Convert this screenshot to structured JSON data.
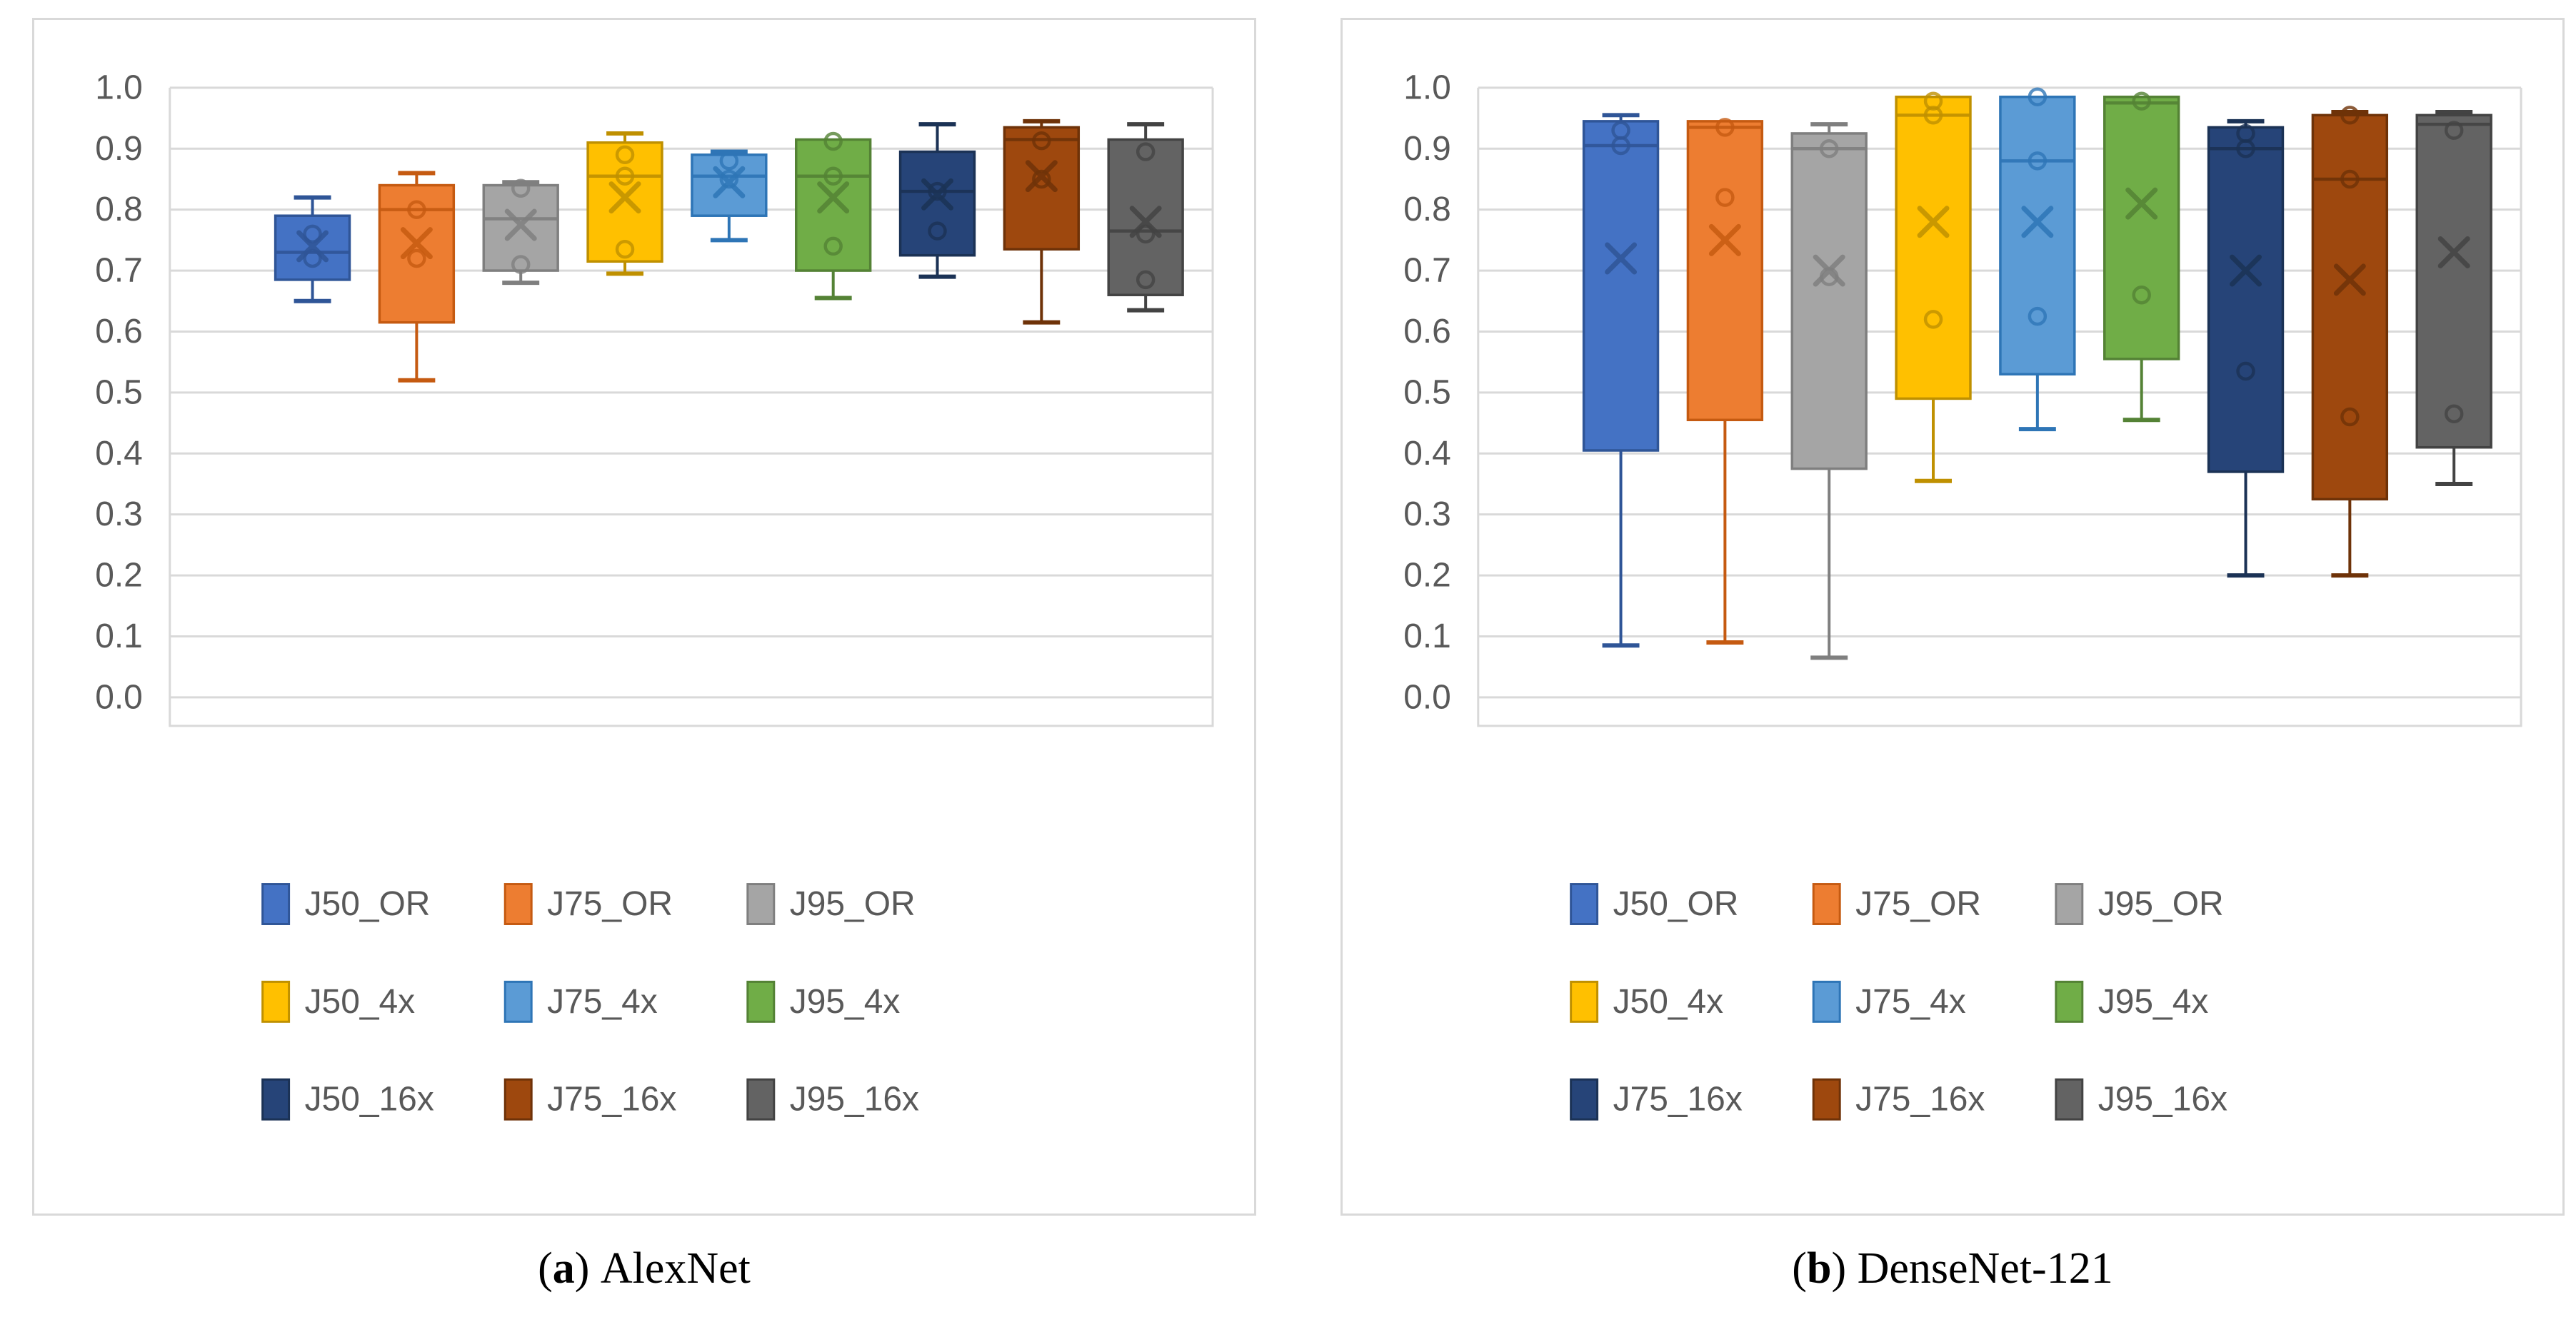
{
  "page": {
    "background": "#ffffff",
    "frame_color": "#d9d9d9",
    "gridline_color": "#d9d9d9",
    "axis_text_color": "#595959",
    "legend_text_color": "#595959"
  },
  "captions": [
    {
      "open": "(",
      "letter": "a",
      "close": ")",
      "title": "AlexNet"
    },
    {
      "open": "(",
      "letter": "b",
      "close": ")",
      "title": "DenseNet-121"
    }
  ],
  "chart_data": [
    {
      "type": "box",
      "title": "(a) AlexNet",
      "xlabel": "",
      "ylabel": "",
      "ylim": [
        0.0,
        1.0
      ],
      "ytick_step": 0.1,
      "grid": true,
      "tick_labels": [
        "0.0",
        "0.1",
        "0.2",
        "0.3",
        "0.4",
        "0.5",
        "0.6",
        "0.7",
        "0.8",
        "0.9",
        "1.0"
      ],
      "legend_position": "bottom",
      "legend_rows": [
        [
          "J50_OR",
          "J75_OR",
          "J95_OR"
        ],
        [
          "J50_4x",
          "J75_4x",
          "J95_4x"
        ],
        [
          "J50_16x",
          "J75_16x",
          "J95_16x"
        ]
      ],
      "series": [
        {
          "name": "J50_OR",
          "fill": "#4472C4",
          "line": "#2F5597",
          "min": 0.65,
          "q1": 0.685,
          "median": 0.73,
          "q3": 0.79,
          "max": 0.82,
          "mean": 0.74,
          "points": [
            0.76,
            0.72
          ]
        },
        {
          "name": "J75_OR",
          "fill": "#ED7D31",
          "line": "#C55A11",
          "min": 0.52,
          "q1": 0.615,
          "median": 0.8,
          "q3": 0.84,
          "max": 0.86,
          "mean": 0.745,
          "points": [
            0.8,
            0.72
          ]
        },
        {
          "name": "J95_OR",
          "fill": "#A5A5A5",
          "line": "#7F7F7F",
          "min": 0.68,
          "q1": 0.7,
          "median": 0.785,
          "q3": 0.84,
          "max": 0.845,
          "mean": 0.775,
          "points": [
            0.835,
            0.71
          ]
        },
        {
          "name": "J50_4x",
          "fill": "#FFC000",
          "line": "#BF9000",
          "min": 0.695,
          "q1": 0.715,
          "median": 0.855,
          "q3": 0.91,
          "max": 0.925,
          "mean": 0.82,
          "points": [
            0.89,
            0.855,
            0.735
          ]
        },
        {
          "name": "J75_4x",
          "fill": "#5B9BD5",
          "line": "#2E75B6",
          "min": 0.75,
          "q1": 0.79,
          "median": 0.855,
          "q3": 0.89,
          "max": 0.895,
          "mean": 0.845,
          "points": [
            0.88,
            0.85
          ]
        },
        {
          "name": "J95_4x",
          "fill": "#70AD47",
          "line": "#548235",
          "min": 0.655,
          "q1": 0.7,
          "median": 0.855,
          "q3": 0.915,
          "max": 0.915,
          "mean": 0.82,
          "points": [
            0.912,
            0.855,
            0.74
          ]
        },
        {
          "name": "J50_16x",
          "fill": "#264478",
          "line": "#1B3255",
          "min": 0.69,
          "q1": 0.725,
          "median": 0.83,
          "q3": 0.895,
          "max": 0.94,
          "mean": 0.825,
          "points": [
            0.83,
            0.765
          ]
        },
        {
          "name": "J75_16x",
          "fill": "#9E480E",
          "line": "#6E3208",
          "min": 0.615,
          "q1": 0.735,
          "median": 0.915,
          "q3": 0.935,
          "max": 0.945,
          "mean": 0.855,
          "points": [
            0.913,
            0.85
          ]
        },
        {
          "name": "J95_16x",
          "fill": "#636363",
          "line": "#434343",
          "min": 0.635,
          "q1": 0.66,
          "median": 0.765,
          "q3": 0.915,
          "max": 0.94,
          "mean": 0.78,
          "points": [
            0.895,
            0.76,
            0.685
          ]
        }
      ]
    },
    {
      "type": "box",
      "title": "(b) DenseNet-121",
      "xlabel": "",
      "ylabel": "",
      "ylim": [
        0.0,
        1.0
      ],
      "ytick_step": 0.1,
      "grid": true,
      "tick_labels": [
        "0.0",
        "0.1",
        "0.2",
        "0.3",
        "0.4",
        "0.5",
        "0.6",
        "0.7",
        "0.8",
        "0.9",
        "1.0"
      ],
      "legend_position": "bottom",
      "legend_rows": [
        [
          "J50_OR",
          "J75_OR",
          "J95_OR"
        ],
        [
          "J50_4x",
          "J75_4x",
          "J95_4x"
        ],
        [
          "J75_16x",
          "J75_16x",
          "J95_16x"
        ]
      ],
      "series": [
        {
          "name": "J50_OR",
          "fill": "#4472C4",
          "line": "#2F5597",
          "min": 0.085,
          "q1": 0.405,
          "median": 0.905,
          "q3": 0.945,
          "max": 0.955,
          "mean": 0.72,
          "points": [
            0.93,
            0.905
          ]
        },
        {
          "name": "J75_OR",
          "fill": "#ED7D31",
          "line": "#C55A11",
          "min": 0.09,
          "q1": 0.455,
          "median": 0.935,
          "q3": 0.945,
          "max": 0.945,
          "mean": 0.75,
          "points": [
            0.935,
            0.82
          ]
        },
        {
          "name": "J95_OR",
          "fill": "#A5A5A5",
          "line": "#7F7F7F",
          "min": 0.065,
          "q1": 0.375,
          "median": 0.9,
          "q3": 0.925,
          "max": 0.94,
          "mean": 0.7,
          "points": [
            0.9,
            0.69
          ]
        },
        {
          "name": "J50_4x",
          "fill": "#FFC000",
          "line": "#BF9000",
          "min": 0.355,
          "q1": 0.49,
          "median": 0.955,
          "q3": 0.985,
          "max": 0.985,
          "mean": 0.78,
          "points": [
            0.978,
            0.955,
            0.62
          ]
        },
        {
          "name": "J75_4x",
          "fill": "#5B9BD5",
          "line": "#2E75B6",
          "min": 0.44,
          "q1": 0.53,
          "median": 0.88,
          "q3": 0.985,
          "max": 0.985,
          "mean": 0.78,
          "points": [
            0.985,
            0.88,
            0.625
          ]
        },
        {
          "name": "J95_4x",
          "fill": "#70AD47",
          "line": "#548235",
          "min": 0.455,
          "q1": 0.555,
          "median": 0.975,
          "q3": 0.985,
          "max": 0.985,
          "mean": 0.81,
          "points": [
            0.978,
            0.66
          ]
        },
        {
          "name": "J75_16x",
          "fill": "#264478",
          "line": "#1B3255",
          "min": 0.2,
          "q1": 0.37,
          "median": 0.9,
          "q3": 0.935,
          "max": 0.945,
          "mean": 0.7,
          "points": [
            0.925,
            0.9,
            0.535
          ]
        },
        {
          "name": "J75_16x",
          "fill": "#9E480E",
          "line": "#6E3208",
          "min": 0.2,
          "q1": 0.325,
          "median": 0.85,
          "q3": 0.955,
          "max": 0.96,
          "mean": 0.685,
          "points": [
            0.955,
            0.85,
            0.46
          ]
        },
        {
          "name": "J95_16x",
          "fill": "#636363",
          "line": "#434343",
          "min": 0.35,
          "q1": 0.41,
          "median": 0.94,
          "q3": 0.955,
          "max": 0.96,
          "mean": 0.73,
          "points": [
            0.93,
            0.465
          ]
        }
      ]
    }
  ]
}
